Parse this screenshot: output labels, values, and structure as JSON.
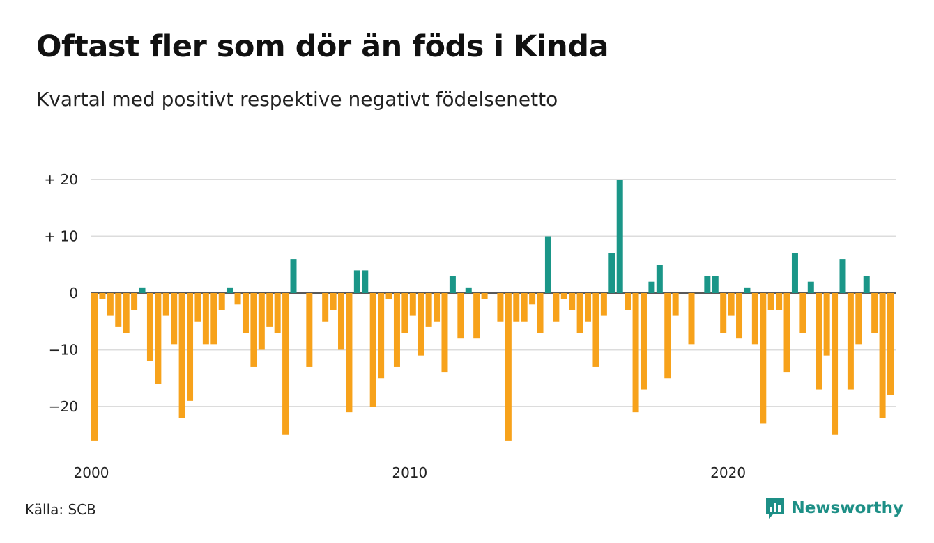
{
  "title": "Oftast fler som dör än föds i Kinda",
  "subtitle": "Kvartal med positivt respektive negativt födelsenetto",
  "source": "Källa: SCB",
  "brand": {
    "name": "Newsworthy",
    "icon": "bar-chart-logo-icon",
    "color": "#1d8f86"
  },
  "colors": {
    "positive": "#1a9688",
    "negative": "#f7a21b",
    "grid": "#dcdcdc",
    "zero": "#222222"
  },
  "chart_data": {
    "type": "bar",
    "title": "Oftast fler som dör än föds i Kinda",
    "subtitle": "Kvartal med positivt respektive negativt födelsenetto",
    "xlabel": "",
    "ylabel": "",
    "ylim": [
      -26,
      20
    ],
    "yticks": [
      {
        "value": 20,
        "label": "+ 20"
      },
      {
        "value": 10,
        "label": "+ 10"
      },
      {
        "value": 0,
        "label": "0"
      },
      {
        "value": -10,
        "label": "−10"
      },
      {
        "value": -20,
        "label": "−20"
      }
    ],
    "xticks": [
      {
        "year": 2000,
        "label": "2000"
      },
      {
        "year": 2010,
        "label": "2010"
      },
      {
        "year": 2020,
        "label": "2020"
      }
    ],
    "start": "2000 Q1",
    "frequency": "quarter",
    "grid": true,
    "values": [
      -26,
      -1,
      -4,
      -6,
      -7,
      -3,
      1,
      -12,
      -16,
      -4,
      -9,
      -22,
      -19,
      -5,
      -9,
      -9,
      -3,
      1,
      -2,
      -7,
      -13,
      -10,
      -6,
      -7,
      -25,
      6,
      0,
      -13,
      0,
      -5,
      -3,
      -10,
      -21,
      4,
      4,
      -20,
      -15,
      -1,
      -13,
      -7,
      -4,
      -11,
      -6,
      -5,
      -14,
      3,
      -8,
      1,
      -8,
      -1,
      0,
      -5,
      -26,
      -5,
      -5,
      -2,
      -7,
      10,
      -5,
      -1,
      -3,
      -7,
      -5,
      -13,
      -4,
      7,
      20,
      -3,
      -21,
      -17,
      2,
      5,
      -15,
      -4,
      0,
      -9,
      0,
      3,
      3,
      -7,
      -4,
      -8,
      1,
      -9,
      -23,
      -3,
      -3,
      -14,
      7,
      -7,
      2,
      -17,
      -11,
      -25,
      6,
      -17,
      -9,
      3,
      -7,
      -22,
      -18
    ]
  }
}
